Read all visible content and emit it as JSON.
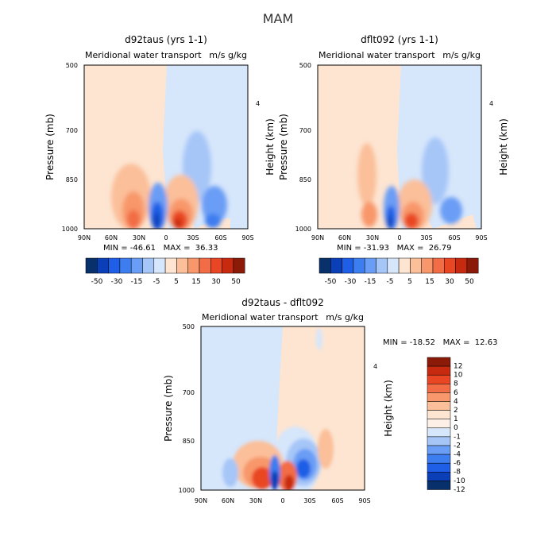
{
  "figure": {
    "title": "MAM"
  },
  "chart_data": [
    {
      "type": "heatmap",
      "title": "d92taus (yrs 1-1)",
      "subtitle": "Meridional water transport",
      "units": "m/s g/kg",
      "xlabel": "",
      "ylabel": "Pressure (mb)",
      "ylabel_right": "Height (km)",
      "x_ticks": [
        "90N",
        "60N",
        "30N",
        "0",
        "30S",
        "60S",
        "90S"
      ],
      "y_ticks": [
        "500",
        "700",
        "850",
        "1000"
      ],
      "y_ticks_right": [
        "4"
      ],
      "min_max": "MIN = -46.61   MAX =  36.33",
      "colorbar": {
        "labels": [
          "-50",
          "-30",
          "-15",
          "-5",
          "5",
          "15",
          "30",
          "50"
        ],
        "colors": [
          "#08306b",
          "#0a3fb8",
          "#1f5ee6",
          "#3c7df0",
          "#6a9df5",
          "#a6c6f8",
          "#d6e6fb",
          "#fde5d2",
          "#fbbf9a",
          "#f8976b",
          "#f26c45",
          "#e94624",
          "#c82a0f",
          "#8b1a08"
        ]
      }
    },
    {
      "type": "heatmap",
      "title": "dflt092 (yrs 1-1)",
      "subtitle": "Meridional water transport",
      "units": "m/s g/kg",
      "xlabel": "",
      "ylabel": "Pressure (mb)",
      "ylabel_right": "Height (km)",
      "x_ticks": [
        "90N",
        "60N",
        "30N",
        "0",
        "30S",
        "60S",
        "90S"
      ],
      "y_ticks": [
        "500",
        "700",
        "850",
        "1000"
      ],
      "y_ticks_right": [
        "4"
      ],
      "min_max": "MIN = -31.93   MAX =  26.79",
      "colorbar": {
        "labels": [
          "-50",
          "-30",
          "-15",
          "-5",
          "5",
          "15",
          "30",
          "50"
        ],
        "colors": [
          "#08306b",
          "#0a3fb8",
          "#1f5ee6",
          "#3c7df0",
          "#6a9df5",
          "#a6c6f8",
          "#d6e6fb",
          "#fde5d2",
          "#fbbf9a",
          "#f8976b",
          "#f26c45",
          "#e94624",
          "#c82a0f",
          "#8b1a08"
        ]
      }
    },
    {
      "type": "heatmap",
      "title": "d92taus - dflt092",
      "subtitle": "Meridional water transport",
      "units": "m/s g/kg",
      "xlabel": "",
      "ylabel": "Pressure (mb)",
      "ylabel_right": "Height (km)",
      "x_ticks": [
        "90N",
        "60N",
        "30N",
        "0",
        "30S",
        "60S",
        "90S"
      ],
      "y_ticks": [
        "500",
        "700",
        "850",
        "1000"
      ],
      "y_ticks_right": [
        "4"
      ],
      "min_max": "MIN = -18.52   MAX =  12.63",
      "colorbar": {
        "labels": [
          "12",
          "10",
          "8",
          "6",
          "4",
          "2",
          "1",
          "0",
          "-1",
          "-2",
          "-4",
          "-6",
          "-8",
          "-10",
          "-12"
        ],
        "colors": [
          "#8b1a08",
          "#c82a0f",
          "#e94624",
          "#f26c45",
          "#f8976b",
          "#fbbf9a",
          "#fde5d2",
          "#fdf0e6",
          "#d6e6fb",
          "#a6c6f8",
          "#6a9df5",
          "#3c7df0",
          "#1f5ee6",
          "#0a3fb8",
          "#08306b"
        ]
      }
    }
  ]
}
